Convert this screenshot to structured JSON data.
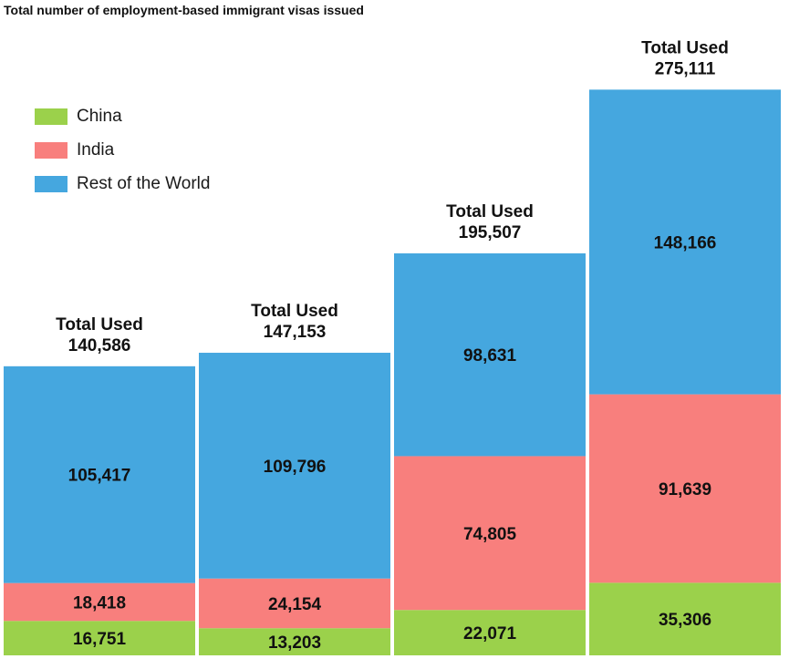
{
  "title": "Total number of employment-based immigrant visas issued",
  "legend": [
    {
      "label": "China",
      "color": "#9bd14b"
    },
    {
      "label": "India",
      "color": "#f87f7d"
    },
    {
      "label": "Rest of the World",
      "color": "#45a7df"
    }
  ],
  "chart_data": {
    "type": "bar",
    "stacked": true,
    "categories": [
      "",
      "",
      "",
      ""
    ],
    "total_label": "Total Used",
    "totals": [
      "140,586",
      "147,153",
      "195,507",
      "275,111"
    ],
    "series": [
      {
        "name": "China",
        "color": "#9bd14b",
        "values": [
          16751,
          13203,
          22071,
          35306
        ],
        "labels": [
          "16,751",
          "13,203",
          "22,071",
          "35,306"
        ]
      },
      {
        "name": "India",
        "color": "#f87f7d",
        "values": [
          18418,
          24154,
          74805,
          91639
        ],
        "labels": [
          "18,418",
          "24,154",
          "74,805",
          "91,639"
        ]
      },
      {
        "name": "Rest of the World",
        "color": "#45a7df",
        "values": [
          105417,
          109796,
          98631,
          148166
        ],
        "labels": [
          "105,417",
          "109,796",
          "98,631",
          "148,166"
        ]
      }
    ],
    "legend_position": "top-left",
    "grid": false
  }
}
